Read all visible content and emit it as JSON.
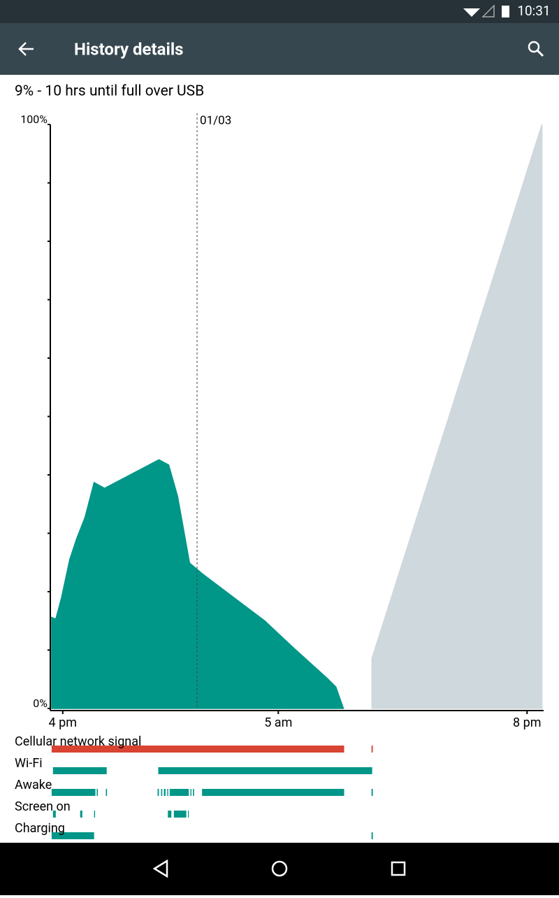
{
  "status_bar": {
    "time": "10:31"
  },
  "app_bar": {
    "title": "History details"
  },
  "summary": "9% - 10 hrs until full over USB",
  "chart_data": {
    "type": "area",
    "xlim": [
      -0.75,
      29
    ],
    "ylim": [
      0,
      100
    ],
    "xticks": [
      {
        "value": 0,
        "label": "4 pm"
      },
      {
        "value": 13,
        "label": "5 am"
      },
      {
        "value": 28,
        "label": "8 pm"
      }
    ],
    "yticks": [
      {
        "value": 0,
        "label": "0%"
      },
      {
        "value": 100,
        "label": "100%"
      }
    ],
    "minor_yticks": [
      10,
      20,
      30,
      40,
      50,
      60,
      70,
      80,
      90
    ],
    "marker": {
      "x": 8.1,
      "label": "01/03"
    },
    "series": [
      {
        "color": "#009688",
        "x": [
          -0.67,
          -0.42,
          -0.08,
          0.42,
          0.84,
          1.34,
          1.89,
          2.52,
          5.8,
          6.39,
          6.93,
          7.65,
          8.4,
          10.5,
          12.18,
          13.87,
          15.97,
          16.47,
          16.93,
          null,
          18.66
        ],
        "values": [
          15.6,
          15.3,
          18.9,
          25.5,
          29.1,
          32.7,
          38.7,
          37.7,
          42.6,
          41.7,
          36.3,
          24.9,
          23.1,
          18.6,
          15.0,
          10.5,
          5.1,
          3.7,
          0,
          null,
          8.7
        ]
      },
      {
        "color": "#cfd8dc",
        "x": [
          18.66,
          28.9
        ],
        "values": [
          8.7,
          100
        ]
      }
    ]
  },
  "status_rows": [
    {
      "label": "Cellular network signal",
      "color": "#d84332",
      "segments": [
        [
          -0.67,
          16.97
        ],
        [
          18.62,
          18.7
        ]
      ]
    },
    {
      "label": "Wi-Fi",
      "color": "#009688",
      "segments": [
        [
          -0.59,
          2.65
        ],
        [
          5.76,
          18.66
        ]
      ]
    },
    {
      "label": "Awake",
      "color": "#009688",
      "segments": [
        [
          -0.67,
          1.97
        ],
        [
          2.05,
          2.12
        ],
        [
          2.6,
          2.67
        ],
        [
          5.72,
          5.8
        ],
        [
          5.93,
          6.0
        ],
        [
          6.1,
          6.2
        ],
        [
          6.3,
          6.36
        ],
        [
          6.45,
          7.6
        ],
        [
          7.7,
          7.76
        ],
        [
          7.85,
          7.92
        ],
        [
          8.4,
          16.97
        ],
        [
          18.62,
          18.7
        ]
      ]
    },
    {
      "label": "Screen on",
      "color": "#009688",
      "segments": [
        [
          -0.59,
          -0.42
        ],
        [
          1.05,
          1.18
        ],
        [
          1.89,
          1.95
        ],
        [
          6.34,
          6.55
        ],
        [
          6.7,
          7.45
        ],
        [
          7.55,
          7.6
        ]
      ]
    },
    {
      "label": "Charging",
      "color": "#009688",
      "segments": [
        [
          -0.67,
          1.89
        ],
        [
          18.62,
          18.7
        ]
      ]
    }
  ]
}
